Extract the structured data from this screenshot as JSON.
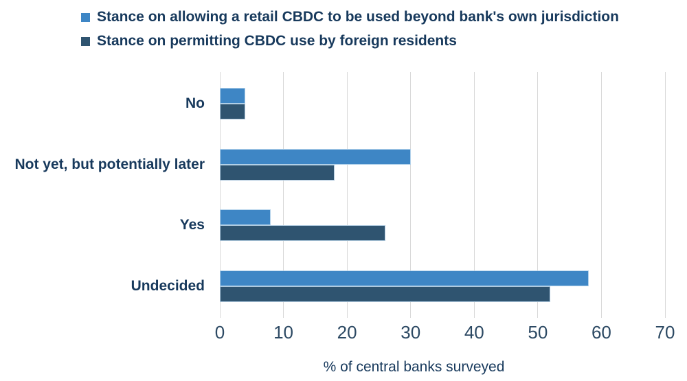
{
  "colors": {
    "series1": "#3e86c5",
    "series2": "#2f5470",
    "text": "#17395c",
    "tick_text": "#2c4963",
    "gridline": "#d8d8d8",
    "bar_outline": "#c6def0",
    "background": "#ffffff"
  },
  "chart_data": {
    "type": "bar",
    "orientation": "horizontal",
    "title": "",
    "categories": [
      "No",
      "Not yet, but potentially later",
      "Yes",
      "Undecided"
    ],
    "series": [
      {
        "name": "Stance on allowing a retail CBDC to be used beyond bank's own jurisdiction",
        "color": "#3e86c5",
        "values": [
          4,
          30,
          8,
          58
        ]
      },
      {
        "name": "Stance on permitting CBDC use by foreign residents",
        "color": "#2f5470",
        "values": [
          4,
          18,
          26,
          52
        ]
      }
    ],
    "xlabel": "% of central banks surveyed",
    "ylabel": "",
    "xlim": [
      0,
      70
    ],
    "xticks": [
      0,
      10,
      20,
      30,
      40,
      50,
      60,
      70
    ],
    "grid": "vertical",
    "legend_position": "top-left"
  }
}
